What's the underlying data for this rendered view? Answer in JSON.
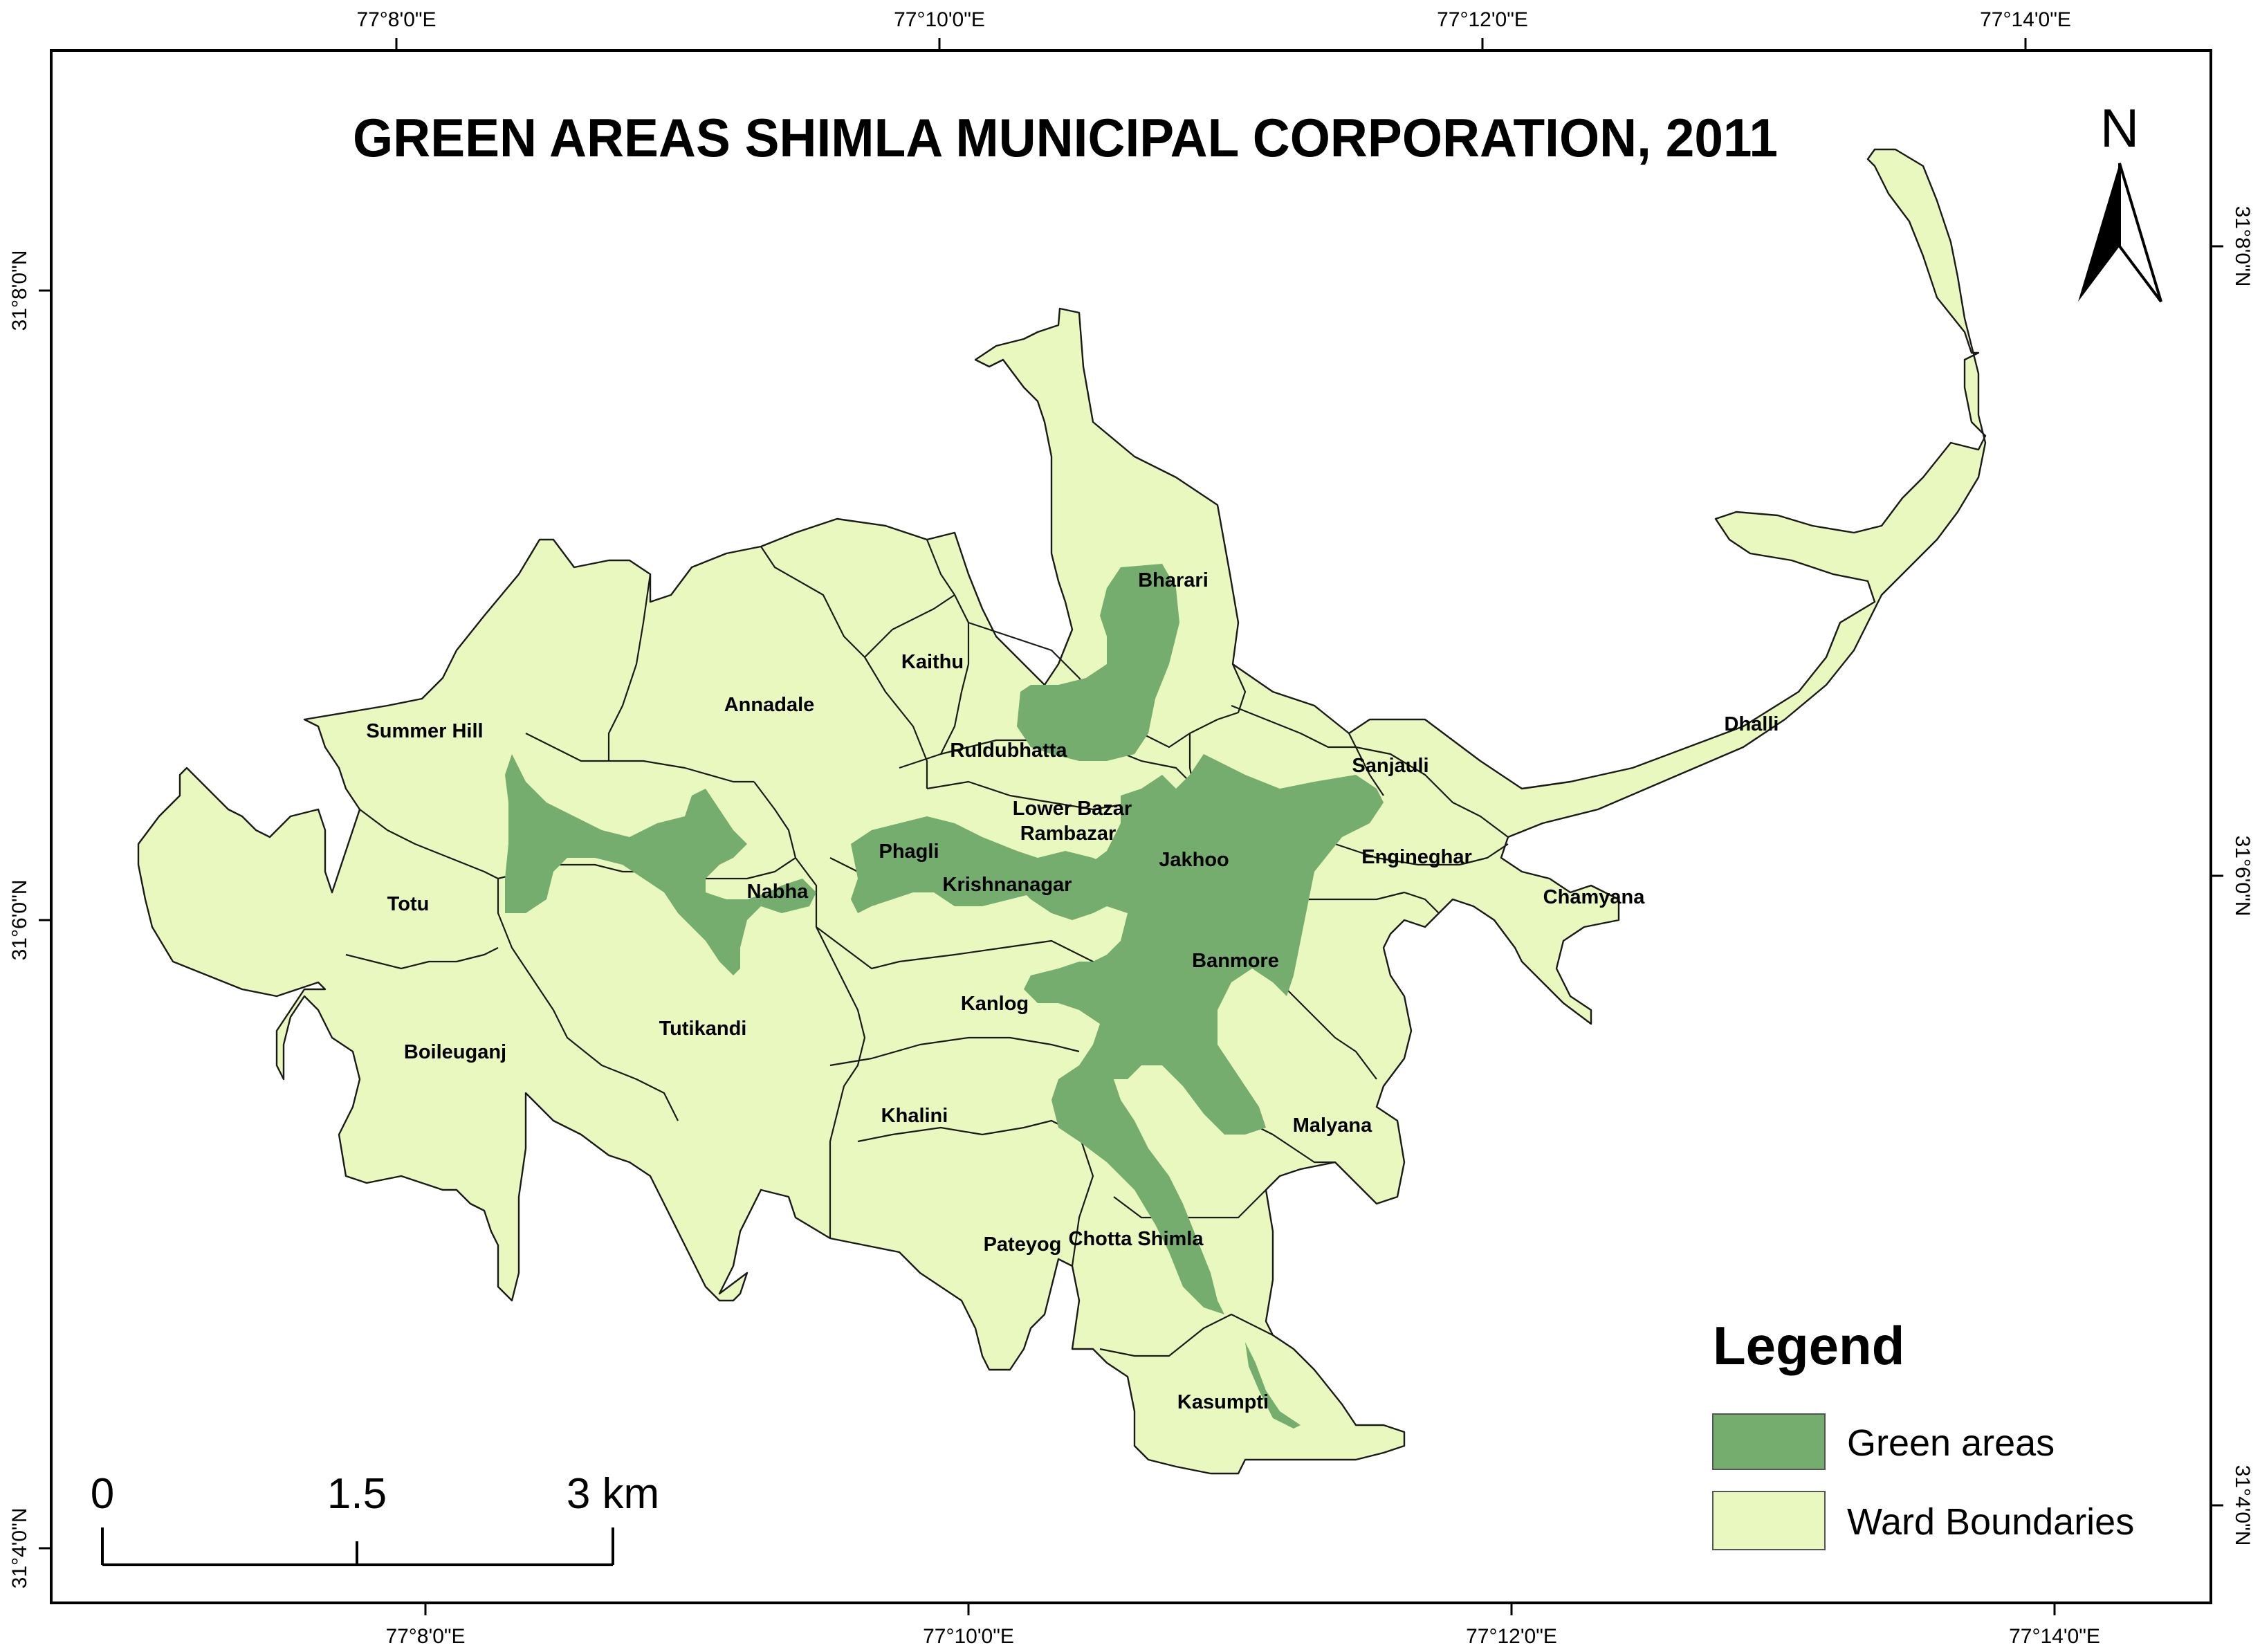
{
  "title": "GREEN AREAS SHIMLA MUNICIPAL CORPORATION, 2011",
  "coordinates": {
    "top_longitudes": [
      "77°8'0\"E",
      "77°10'0\"E",
      "77°12'0\"E",
      "77°14'0\"E"
    ],
    "bottom_longitudes": [
      "77°8'0\"E",
      "77°10'0\"E",
      "77°12'0\"E",
      "77°14'0\"E"
    ],
    "left_latitudes": [
      "31°8'0\"N",
      "31°6'0\"N",
      "31°4'0\"N"
    ],
    "right_latitudes": [
      "31°8'0\"N",
      "31°6'0\"N",
      "31°4'0\"N"
    ]
  },
  "wards": {
    "bharari": "Bharari",
    "kaithu": "Kaithu",
    "annadale": "Annadale",
    "summer_hill": "Summer Hill",
    "ruldubhatta": "Ruldubhatta",
    "sanjauli": "Sanjauli",
    "dhalli": "Dhalli",
    "lower_bazar": "Lower Bazar",
    "rambazar": "Rambazar",
    "phagli": "Phagli",
    "krishnanagar": "Krishnanagar",
    "jakhoo": "Jakhoo",
    "engineghar": "Engineghar",
    "chamyana": "Chamyana",
    "totu": "Totu",
    "nabha": "Nabha",
    "banmore": "Banmore",
    "kanlog": "Kanlog",
    "tutikandi": "Tutikandi",
    "boileuganj": "Boileuganj",
    "khalini": "Khalini",
    "malyana": "Malyana",
    "chotta_shimla": "Chotta Shimla",
    "pateyog": "Pateyog",
    "kasumpti": "Kasumpti"
  },
  "legend": {
    "title": "Legend",
    "items": [
      {
        "label": "Green areas",
        "color": "#75ad6e"
      },
      {
        "label": "Ward Boundaries",
        "color": "#e9f8be"
      }
    ]
  },
  "scale_bar": {
    "labels": [
      "0",
      "1.5",
      "3 km"
    ]
  },
  "north_arrow": {
    "letter": "N",
    "icon": "north-arrow-icon"
  },
  "colors": {
    "green_areas": "#75ad6e",
    "ward_boundaries": "#e9f8be"
  }
}
